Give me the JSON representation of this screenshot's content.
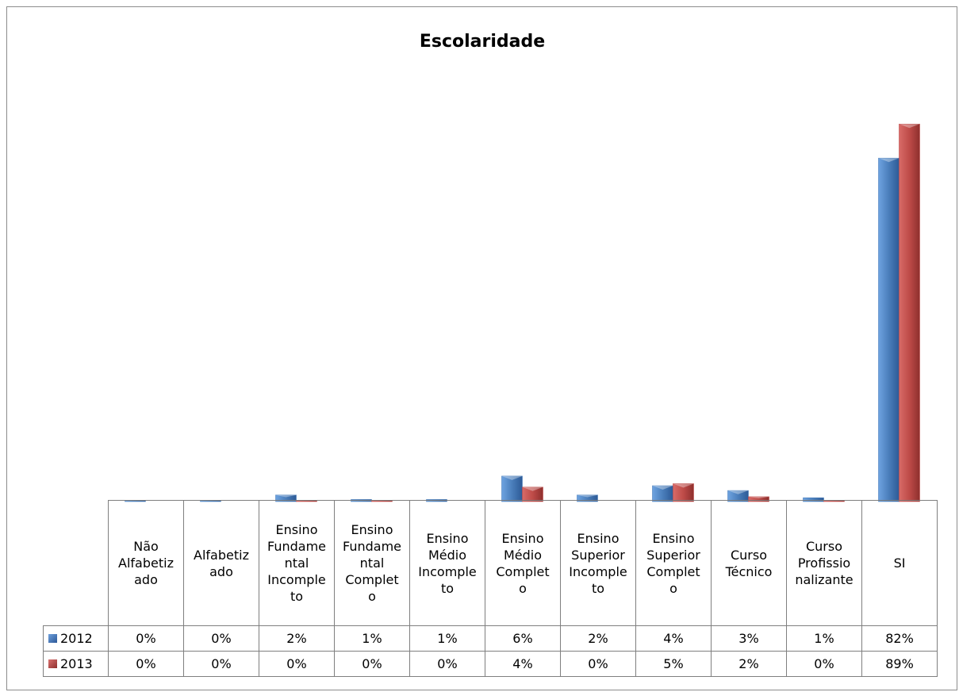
{
  "chart_data": {
    "type": "bar",
    "title": "Escolaridade",
    "categories": [
      "Não Alfabetizado",
      "Alfabetizado",
      "Ensino Fundamental Incompleto",
      "Ensino Fundamental Completo",
      "Ensino Médio Incompleto",
      "Ensino Médio Completo",
      "Ensino Superior Incompleto",
      "Ensino Superior Completo",
      "Curso Técnico",
      "Curso Profissionalizante",
      "SI"
    ],
    "category_lines": [
      [
        "Não",
        "Alfabetiz",
        "ado"
      ],
      [
        "Alfabetiz",
        "ado"
      ],
      [
        "Ensino",
        "Fundame",
        "ntal",
        "Incomple",
        "to"
      ],
      [
        "Ensino",
        "Fundame",
        "ntal",
        "Complet",
        "o"
      ],
      [
        "Ensino",
        "Médio",
        "Incomple",
        "to"
      ],
      [
        "Ensino",
        "Médio",
        "Complet",
        "o"
      ],
      [
        "Ensino",
        "Superior",
        "Incomple",
        "to"
      ],
      [
        "Ensino",
        "Superior",
        "Complet",
        "o"
      ],
      [
        "Curso",
        "Técnico"
      ],
      [
        "Curso",
        "Profissio",
        "nalizante"
      ],
      [
        "SI"
      ]
    ],
    "series": [
      {
        "name": "2012",
        "color": "#4a7ebb",
        "values": [
          0.1,
          0.1,
          1.9,
          0.6,
          0.6,
          7.4,
          1.9,
          4.6,
          3.2,
          1.1,
          99.8
        ],
        "labels": [
          "0%",
          "0%",
          "2%",
          "1%",
          "1%",
          "6%",
          "2%",
          "4%",
          "3%",
          "1%",
          "82%"
        ]
      },
      {
        "name": "2013",
        "color": "#be4b48",
        "values": [
          0.0,
          0.0,
          0.1,
          0.3,
          0.0,
          4.2,
          0.0,
          5.2,
          1.4,
          0.1,
          109.7
        ],
        "labels": [
          "0%",
          "0%",
          "0%",
          "0%",
          "0%",
          "4%",
          "0%",
          "5%",
          "2%",
          "0%",
          "89%"
        ]
      }
    ],
    "ylim": [
      0,
      110
    ],
    "legend": "data-table",
    "grid": false
  }
}
